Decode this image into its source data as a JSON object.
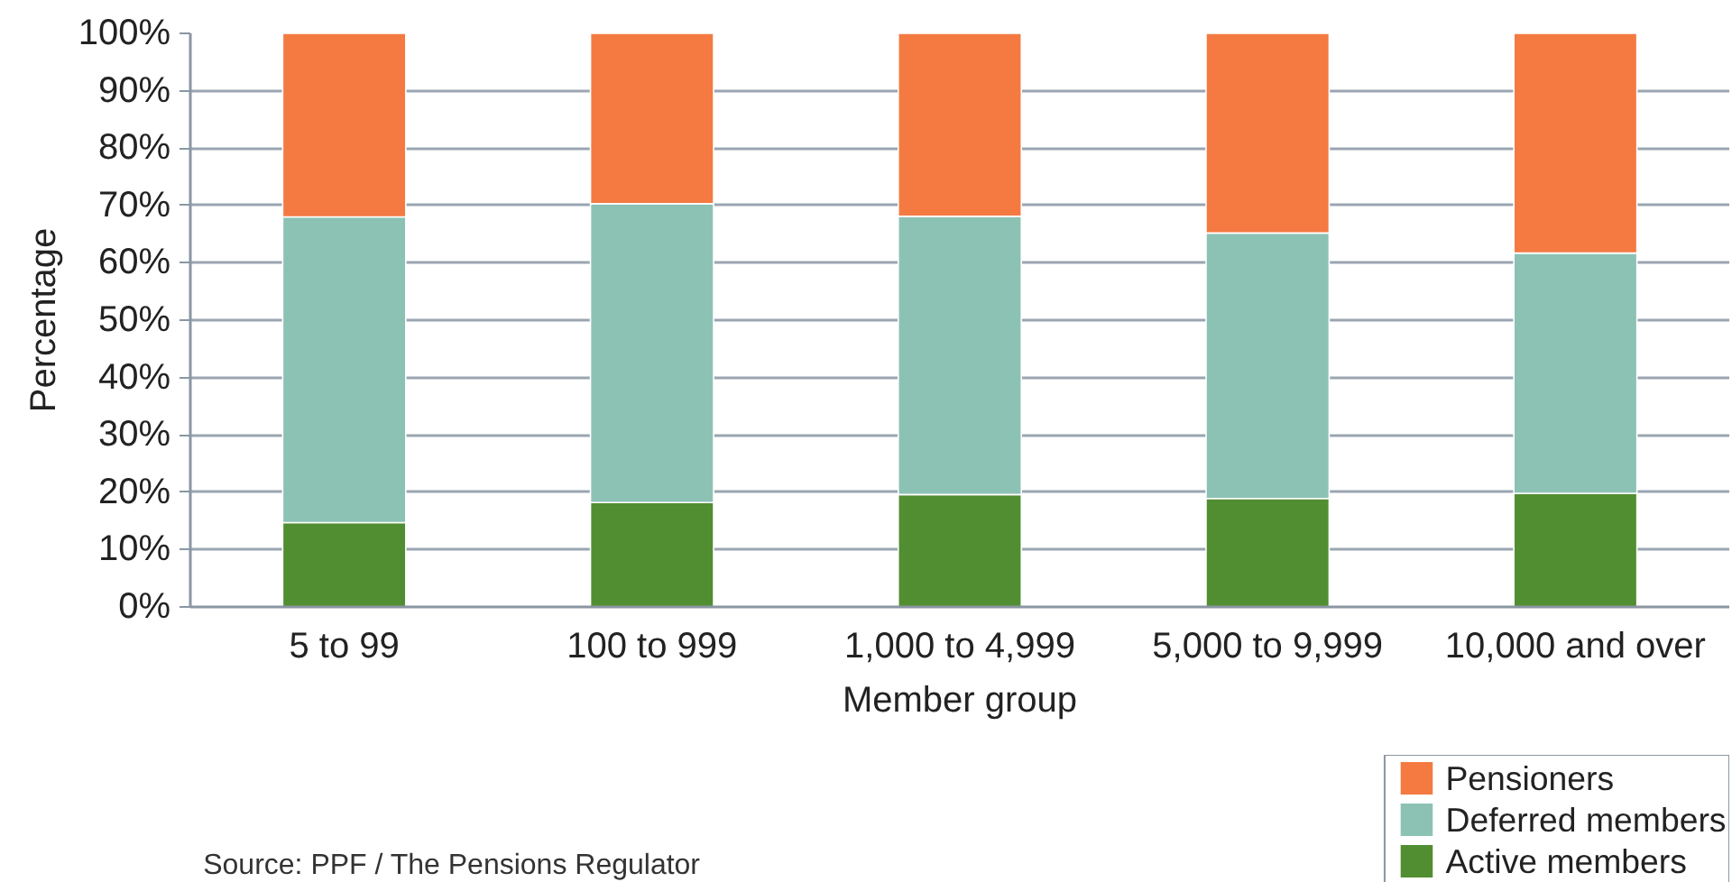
{
  "chart_data": {
    "type": "bar",
    "stacked": true,
    "xlabel": "Member group",
    "ylabel": "Percentage",
    "categories": [
      "5 to 99",
      "100 to 999",
      "1,000 to 4,999",
      "5,000 to 9,999",
      "10,000 and over"
    ],
    "series": [
      {
        "name": "Active members",
        "color": "#518e31",
        "values": [
          14.7,
          18.2,
          19.6,
          18.9,
          19.8
        ]
      },
      {
        "name": "Deferred members",
        "color": "#8cc2b4",
        "values": [
          53.3,
          52.1,
          48.5,
          46.3,
          41.9
        ]
      },
      {
        "name": "Pensioners",
        "color": "#f47a42",
        "values": [
          32.0,
          29.7,
          31.9,
          34.8,
          38.3
        ]
      }
    ],
    "ylim": [
      0,
      100
    ],
    "yticks": [
      {
        "value": 0,
        "label": "0%"
      },
      {
        "value": 10,
        "label": "10%"
      },
      {
        "value": 20,
        "label": "20%"
      },
      {
        "value": 30,
        "label": "30%"
      },
      {
        "value": 40,
        "label": "40%"
      },
      {
        "value": 50,
        "label": "50%"
      },
      {
        "value": 60,
        "label": "60%"
      },
      {
        "value": 70,
        "label": "70%"
      },
      {
        "value": 80,
        "label": "80%"
      },
      {
        "value": 90,
        "label": "90%"
      },
      {
        "value": 100,
        "label": "100%"
      }
    ],
    "grid": "y",
    "legend": "bottom right",
    "annotations": [
      "Source: PPF / The Pensions Regulator"
    ]
  }
}
